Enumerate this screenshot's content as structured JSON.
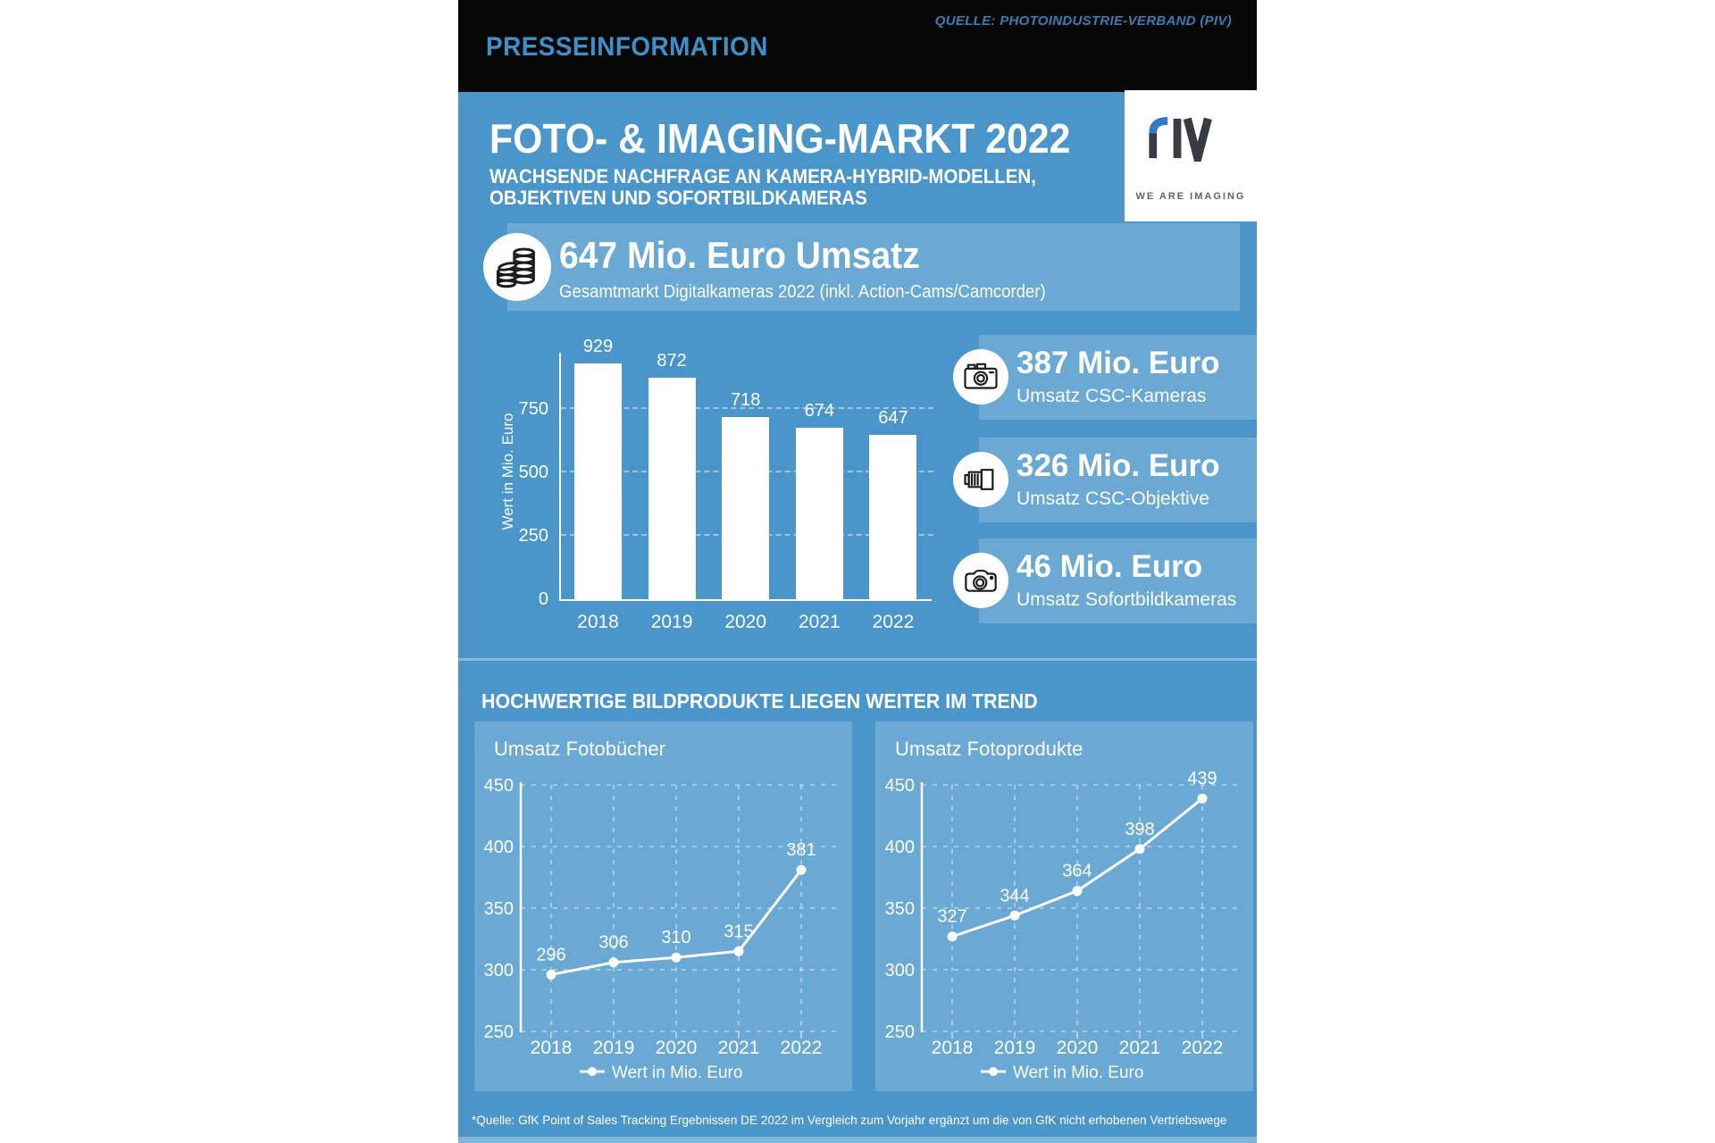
{
  "colors": {
    "main_blue": "#4A96CB",
    "header_black": "#070707",
    "header_text_blue": "#3E90C8",
    "source_text_blue": "#3B7DB2",
    "logo_dark": "#383C42",
    "logo_blue": "#2E7CC3",
    "white": "#FFFFFF"
  },
  "header": {
    "label": "PRESSEINFORMATION",
    "source": "QUELLE: PHOTOINDUSTRIE-VERBAND (PIV)"
  },
  "hero": {
    "title": "FOTO- & IMAGING-MARKT 2022",
    "subtitle_line1": "WACHSENDE NACHFRAGE AN KAMERA-HYBRID-MODELLEN,",
    "subtitle_line2": "OBJEKTIVEN UND SOFORTBILDKAMERAS"
  },
  "logo": {
    "name": "PIV",
    "tagline": "WE ARE IMAGING"
  },
  "banner": {
    "value": "647 Mio. Euro Umsatz",
    "caption": "Gesamtmarkt Digitalkameras 2022 (inkl. Action-Cams/Camcorder)",
    "icon": "coins-icon"
  },
  "stats": [
    {
      "value": "387 Mio. Euro",
      "label": "Umsatz CSC-Kameras",
      "icon": "csc-camera-icon"
    },
    {
      "value": "326 Mio. Euro",
      "label": "Umsatz CSC-Objektive",
      "icon": "lens-icon"
    },
    {
      "value": "46 Mio. Euro",
      "label": "Umsatz Sofortbildkameras",
      "icon": "instant-camera-icon"
    }
  ],
  "section2": {
    "heading": "HOCHWERTIGE BILDPRODUKTE LIEGEN WEITER IM TREND"
  },
  "footer": {
    "note": "*Quelle: GfK Point of Sales Tracking Ergebnissen DE 2022 im Vergleich zum Vorjahr ergänzt um die von GfK nicht erhobenen Vertriebswege"
  },
  "chart_data": [
    {
      "type": "bar",
      "title": "Gesamtmarkt Digitalkameras 2022",
      "categories": [
        "2018",
        "2019",
        "2020",
        "2021",
        "2022"
      ],
      "values": [
        929,
        872,
        718,
        674,
        647
      ],
      "xlabel": "",
      "ylabel": "Wert in Mio. Euro",
      "yticks": [
        0,
        250,
        500,
        750
      ],
      "ylim": [
        0,
        980
      ],
      "grid": true,
      "bar_color": "#FFFFFF"
    },
    {
      "type": "line",
      "title": "Umsatz Fotobücher",
      "categories": [
        "2018",
        "2019",
        "2020",
        "2021",
        "2022"
      ],
      "values": [
        296,
        306,
        310,
        315,
        381
      ],
      "yticks": [
        450,
        400,
        350,
        300,
        250
      ],
      "ylim": [
        250,
        450
      ],
      "grid": true,
      "legend": "Wert in Mio. Euro",
      "legend_position": "bottom-center"
    },
    {
      "type": "line",
      "title": "Umsatz Fotoprodukte",
      "categories": [
        "2018",
        "2019",
        "2020",
        "2021",
        "2022"
      ],
      "values": [
        327,
        344,
        364,
        398,
        439
      ],
      "yticks": [
        450,
        400,
        350,
        300,
        250
      ],
      "ylim": [
        250,
        450
      ],
      "grid": true,
      "legend": "Wert in Mio. Euro",
      "legend_position": "bottom-center"
    }
  ]
}
